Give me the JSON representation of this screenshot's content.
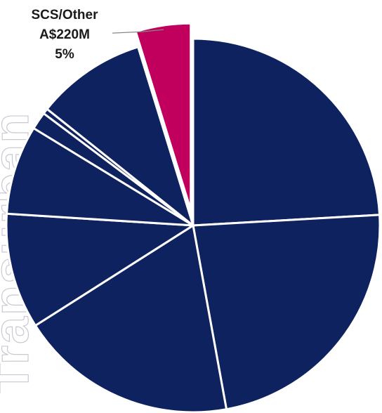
{
  "chart_data": {
    "type": "pie",
    "colors": {
      "default": "#0e2260",
      "highlight": "#c0005c",
      "separator": "#ffffff",
      "leader": "#888888"
    },
    "slices": [
      {
        "value": 25.3,
        "highlight": false,
        "label_lines": []
      },
      {
        "value": 24.2,
        "highlight": false,
        "label_lines": []
      },
      {
        "value": 19.8,
        "highlight": false,
        "label_lines": []
      },
      {
        "value": 10.5,
        "highlight": false,
        "label_lines": []
      },
      {
        "value": 8.1,
        "highlight": false,
        "label_lines": []
      },
      {
        "value": 1.6,
        "highlight": false,
        "label_lines": []
      },
      {
        "value": 0.5,
        "highlight": false,
        "label_lines": []
      },
      {
        "value": 10.0,
        "highlight": false,
        "label_lines": []
      },
      {
        "value": 5.0,
        "highlight": true,
        "label_lines": [
          "SCS/Other",
          "A$220M",
          "5%"
        ]
      }
    ]
  }
}
